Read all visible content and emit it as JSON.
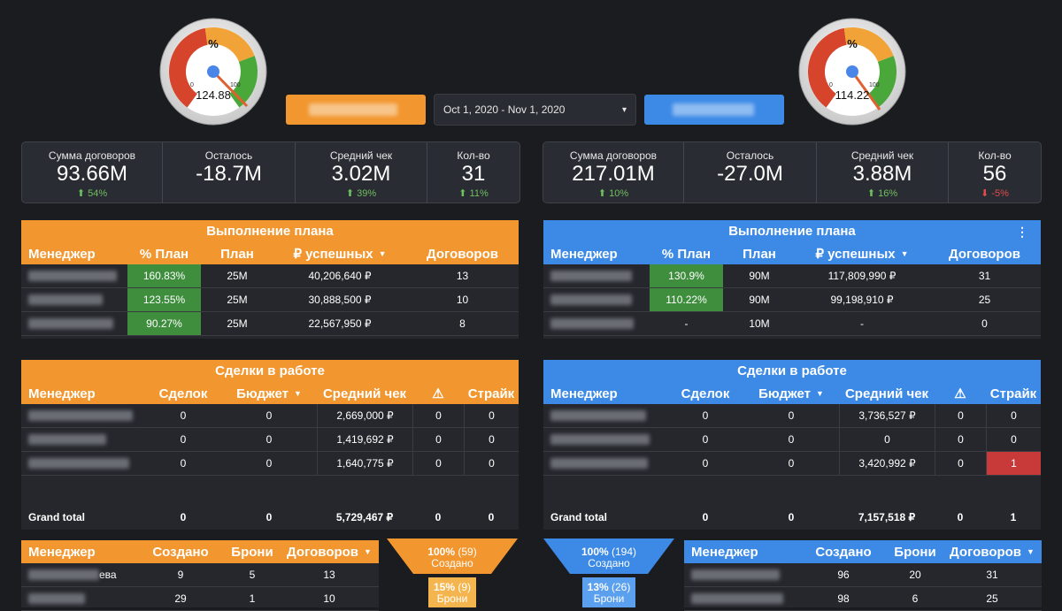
{
  "colors": {
    "orange": "#f2962f",
    "blue": "#3c8ae6",
    "green": "#3e8e3e",
    "red": "#c83a3a",
    "background": "#1b1c20"
  },
  "gauges": [
    {
      "symbol": "%",
      "value_label": "124.88",
      "min_label": "0",
      "max_label": "100",
      "value": 124.88
    },
    {
      "symbol": "%",
      "value_label": "114.22",
      "min_label": "0",
      "max_label": "100",
      "value": 114.22
    }
  ],
  "date_range": {
    "label": "Oct 1, 2020 - Nov 1, 2020",
    "arrow": "▾"
  },
  "kpis": [
    [
      {
        "label": "Сумма договоров",
        "value": "93.66M",
        "delta": "⬆ 54%",
        "dir": "up"
      },
      {
        "label": "Осталось",
        "value": "-18.7M",
        "delta": "",
        "dir": ""
      },
      {
        "label": "Средний чек",
        "value": "3.02M",
        "delta": "⬆ 39%",
        "dir": "up"
      },
      {
        "label": "Кол-во",
        "value": "31",
        "delta": "⬆ 11%",
        "dir": "up"
      }
    ],
    [
      {
        "label": "Сумма договоров",
        "value": "217.01M",
        "delta": "⬆ 10%",
        "dir": "up"
      },
      {
        "label": "Осталось",
        "value": "-27.0M",
        "delta": "",
        "dir": ""
      },
      {
        "label": "Средний чек",
        "value": "3.88M",
        "delta": "⬆ 16%",
        "dir": "up"
      },
      {
        "label": "Кол-во",
        "value": "56",
        "delta": "⬇ -5%",
        "dir": "down"
      }
    ]
  ],
  "plan": {
    "title": "Выполнение плана",
    "menu_icon": "⋮",
    "headers": [
      "Менеджер",
      "% План",
      "План",
      "₽ успешных",
      "Договоров"
    ],
    "sort_arrow": "▼",
    "left_rows": [
      {
        "pct": "160.83%",
        "plan": "25M",
        "sum": "40,206,640 ₽",
        "count": "13",
        "highlight": true
      },
      {
        "pct": "123.55%",
        "plan": "25M",
        "sum": "30,888,500 ₽",
        "count": "10",
        "highlight": true
      },
      {
        "pct": "90.27%",
        "plan": "25M",
        "sum": "22,567,950 ₽",
        "count": "8",
        "highlight": true
      }
    ],
    "right_rows": [
      {
        "pct": "130.9%",
        "plan": "90M",
        "sum": "117,809,990 ₽",
        "count": "31",
        "highlight": true
      },
      {
        "pct": "110.22%",
        "plan": "90M",
        "sum": "99,198,910 ₽",
        "count": "25",
        "highlight": true
      },
      {
        "pct": "-",
        "plan": "10M",
        "sum": "-",
        "count": "0",
        "highlight": false
      }
    ]
  },
  "deals": {
    "title": "Сделки в работе",
    "headers": [
      "Менеджер",
      "Сделок",
      "Бюджет",
      "Средний чек",
      "⚠",
      "Страйк"
    ],
    "sort_arrow": "▼",
    "left_rows": [
      {
        "deals": "0",
        "budget": "0",
        "avg": "2,669,000 ₽",
        "warn": "0",
        "strike": "0"
      },
      {
        "deals": "0",
        "budget": "0",
        "avg": "1,419,692 ₽",
        "warn": "0",
        "strike": "0"
      },
      {
        "deals": "0",
        "budget": "0",
        "avg": "1,640,775 ₽",
        "warn": "0",
        "strike": "0"
      }
    ],
    "left_total": {
      "label": "Grand total",
      "deals": "0",
      "budget": "0",
      "avg": "5,729,467 ₽",
      "warn": "0",
      "strike": "0"
    },
    "right_rows": [
      {
        "deals": "0",
        "budget": "0",
        "avg": "3,736,527 ₽",
        "warn": "0",
        "strike": "0"
      },
      {
        "deals": "0",
        "budget": "0",
        "avg": "0",
        "warn": "0",
        "strike": "0"
      },
      {
        "deals": "0",
        "budget": "0",
        "avg": "3,420,992 ₽",
        "warn": "0",
        "strike": "1"
      }
    ],
    "right_total": {
      "label": "Grand total",
      "deals": "0",
      "budget": "0",
      "avg": "7,157,518 ₽",
      "warn": "0",
      "strike": "1"
    }
  },
  "bottom": {
    "headers": [
      "Менеджер",
      "Создано",
      "Брони",
      "Договоров"
    ],
    "sort_arrow": "▼",
    "left_rows": [
      {
        "name_suffix": "ева",
        "created": "9",
        "booked": "5",
        "contracts": "13"
      },
      {
        "name_suffix": "",
        "created": "29",
        "booked": "1",
        "contracts": "10"
      }
    ],
    "right_rows": [
      {
        "created": "96",
        "booked": "20",
        "contracts": "31"
      },
      {
        "created": "98",
        "booked": "6",
        "contracts": "25"
      }
    ]
  },
  "funnel": {
    "left": {
      "top_pct": "100%",
      "top_count": "(59)",
      "top_label": "Создано",
      "bot_pct": "15%",
      "bot_count": "(9)",
      "bot_label": "Брони"
    },
    "right": {
      "top_pct": "100%",
      "top_count": "(194)",
      "top_label": "Создано",
      "bot_pct": "13%",
      "bot_count": "(26)",
      "bot_label": "Брони"
    }
  }
}
